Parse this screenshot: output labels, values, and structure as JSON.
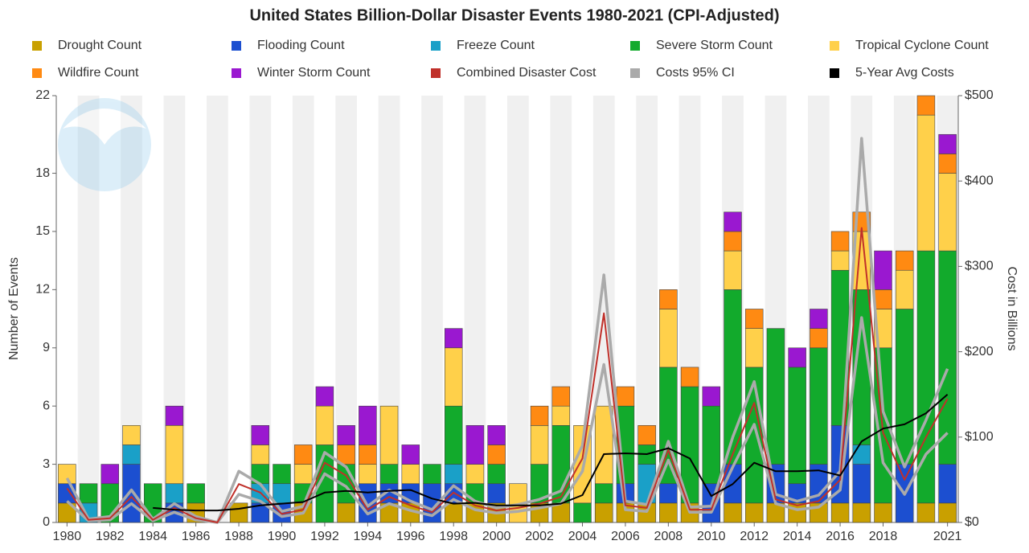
{
  "chart_data": {
    "type": "bar",
    "stacked": true,
    "title": "United States Billion-Dollar Disaster Events 1980-2021 (CPI-Adjusted)",
    "y_label": "Number of Events",
    "y2_label": "Cost in Billions",
    "x": [
      1980,
      1981,
      1982,
      1983,
      1984,
      1985,
      1986,
      1987,
      1988,
      1989,
      1990,
      1991,
      1992,
      1993,
      1994,
      1995,
      1996,
      1997,
      1998,
      1999,
      2000,
      2001,
      2002,
      2003,
      2004,
      2005,
      2006,
      2007,
      2008,
      2009,
      2010,
      2011,
      2012,
      2013,
      2014,
      2015,
      2016,
      2017,
      2018,
      2019,
      2020,
      2021
    ],
    "xlim": [
      1979.5,
      2021.5
    ],
    "xticks": [
      1980,
      1982,
      1984,
      1986,
      1988,
      1990,
      1992,
      1994,
      1996,
      1998,
      2000,
      2002,
      2004,
      2006,
      2008,
      2010,
      2012,
      2014,
      2016,
      2018,
      2021
    ],
    "ylim": [
      0,
      22
    ],
    "yticks": [
      0,
      3,
      6,
      9,
      12,
      15,
      18,
      22
    ],
    "y2lim": [
      0,
      500
    ],
    "y2ticks": [
      {
        "value": 0,
        "label": "$0"
      },
      {
        "value": 100,
        "label": "$100"
      },
      {
        "value": 200,
        "label": "$200"
      },
      {
        "value": 300,
        "label": "$300"
      },
      {
        "value": 400,
        "label": "$400"
      },
      {
        "value": 500,
        "label": "$500"
      }
    ],
    "grid": false,
    "series": [
      {
        "name": "Drought Count",
        "color": "#c9a000",
        "values": [
          1,
          0,
          0,
          0,
          0,
          0,
          1,
          0,
          1,
          0,
          0,
          1,
          0,
          1,
          0,
          1,
          1,
          0,
          1,
          1,
          1,
          0,
          1,
          1,
          0,
          1,
          1,
          1,
          1,
          1,
          0,
          1,
          1,
          1,
          1,
          1,
          1,
          1,
          1,
          0,
          1,
          1
        ]
      },
      {
        "name": "Flooding Count",
        "color": "#1c4fd0",
        "values": [
          1,
          0,
          0,
          3,
          0,
          1,
          0,
          0,
          0,
          1,
          1,
          0,
          0,
          0,
          2,
          1,
          1,
          2,
          1,
          0,
          1,
          0,
          0,
          0,
          0,
          0,
          1,
          0,
          1,
          0,
          2,
          2,
          0,
          2,
          1,
          2,
          4,
          2,
          0,
          3,
          0,
          2
        ]
      },
      {
        "name": "Freeze Count",
        "color": "#1aa0c8",
        "values": [
          0,
          1,
          0,
          1,
          0,
          1,
          0,
          0,
          0,
          1,
          1,
          0,
          0,
          0,
          0,
          0,
          0,
          0,
          1,
          0,
          0,
          0,
          0,
          0,
          0,
          0,
          0,
          2,
          0,
          0,
          0,
          0,
          0,
          0,
          0,
          0,
          0,
          1,
          0,
          0,
          0,
          0
        ]
      },
      {
        "name": "Severe Storm Count",
        "color": "#12aa2c",
        "values": [
          0,
          1,
          2,
          0,
          2,
          0,
          1,
          0,
          0,
          1,
          1,
          1,
          4,
          2,
          0,
          1,
          0,
          1,
          3,
          1,
          1,
          0,
          2,
          4,
          1,
          1,
          4,
          1,
          6,
          6,
          4,
          9,
          7,
          7,
          6,
          6,
          8,
          8,
          8,
          8,
          13,
          11
        ]
      },
      {
        "name": "Tropical Cyclone Count",
        "color": "#ffd04a",
        "values": [
          1,
          0,
          0,
          1,
          0,
          3,
          0,
          0,
          0,
          1,
          0,
          1,
          2,
          0,
          1,
          3,
          1,
          0,
          3,
          1,
          0,
          2,
          2,
          1,
          4,
          4,
          0,
          0,
          3,
          0,
          0,
          2,
          2,
          0,
          0,
          0,
          1,
          3,
          2,
          2,
          7,
          4
        ]
      },
      {
        "name": "Wildfire Count",
        "color": "#ff8a12",
        "values": [
          0,
          0,
          0,
          0,
          0,
          0,
          0,
          0,
          0,
          0,
          0,
          1,
          0,
          1,
          1,
          0,
          0,
          0,
          0,
          0,
          1,
          0,
          1,
          1,
          0,
          0,
          1,
          1,
          1,
          1,
          0,
          1,
          1,
          0,
          0,
          1,
          1,
          1,
          1,
          1,
          1,
          1
        ]
      },
      {
        "name": "Winter Storm Count",
        "color": "#9a18d0",
        "values": [
          0,
          0,
          1,
          0,
          0,
          1,
          0,
          0,
          0,
          1,
          0,
          0,
          1,
          1,
          2,
          0,
          1,
          0,
          1,
          2,
          1,
          0,
          0,
          0,
          0,
          0,
          0,
          0,
          0,
          0,
          1,
          1,
          0,
          0,
          1,
          1,
          0,
          0,
          2,
          0,
          0,
          1
        ]
      },
      {
        "name": "Combined Disaster Cost",
        "color": "#c0302a",
        "type": "line",
        "axis": "y2",
        "values": [
          40,
          3,
          5,
          30,
          3,
          17,
          5,
          0,
          45,
          35,
          10,
          15,
          70,
          55,
          15,
          30,
          20,
          12,
          35,
          20,
          14,
          17,
          22,
          30,
          75,
          245,
          20,
          17,
          85,
          15,
          15,
          80,
          140,
          27,
          20,
          25,
          50,
          345,
          105,
          50,
          100,
          145
        ]
      },
      {
        "name": "Costs 95% CI",
        "color": "#aaaaaa",
        "type": "band",
        "axis": "y2",
        "lower": [
          25,
          2,
          3,
          22,
          2,
          12,
          3,
          0,
          33,
          25,
          7,
          11,
          57,
          42,
          10,
          22,
          14,
          8,
          27,
          15,
          11,
          13,
          17,
          22,
          60,
          185,
          15,
          13,
          73,
          12,
          12,
          65,
          115,
          22,
          15,
          18,
          38,
          240,
          70,
          33,
          80,
          105
        ],
        "upper": [
          52,
          4,
          7,
          38,
          4,
          22,
          7,
          0,
          60,
          45,
          13,
          19,
          82,
          65,
          19,
          38,
          25,
          15,
          43,
          25,
          17,
          21,
          27,
          37,
          90,
          290,
          25,
          21,
          95,
          18,
          19,
          100,
          165,
          33,
          25,
          32,
          60,
          450,
          130,
          65,
          120,
          180
        ]
      },
      {
        "name": "5-Year Avg Costs",
        "color": "#000000",
        "type": "line",
        "axis": "y2",
        "values": [
          null,
          null,
          null,
          null,
          17,
          15,
          14,
          14,
          16,
          20,
          22,
          24,
          35,
          37,
          35,
          37,
          38,
          28,
          22,
          23,
          20,
          20,
          20,
          22,
          32,
          80,
          81,
          80,
          87,
          75,
          31,
          45,
          70,
          60,
          60,
          61,
          55,
          95,
          110,
          115,
          128,
          150
        ]
      }
    ]
  }
}
